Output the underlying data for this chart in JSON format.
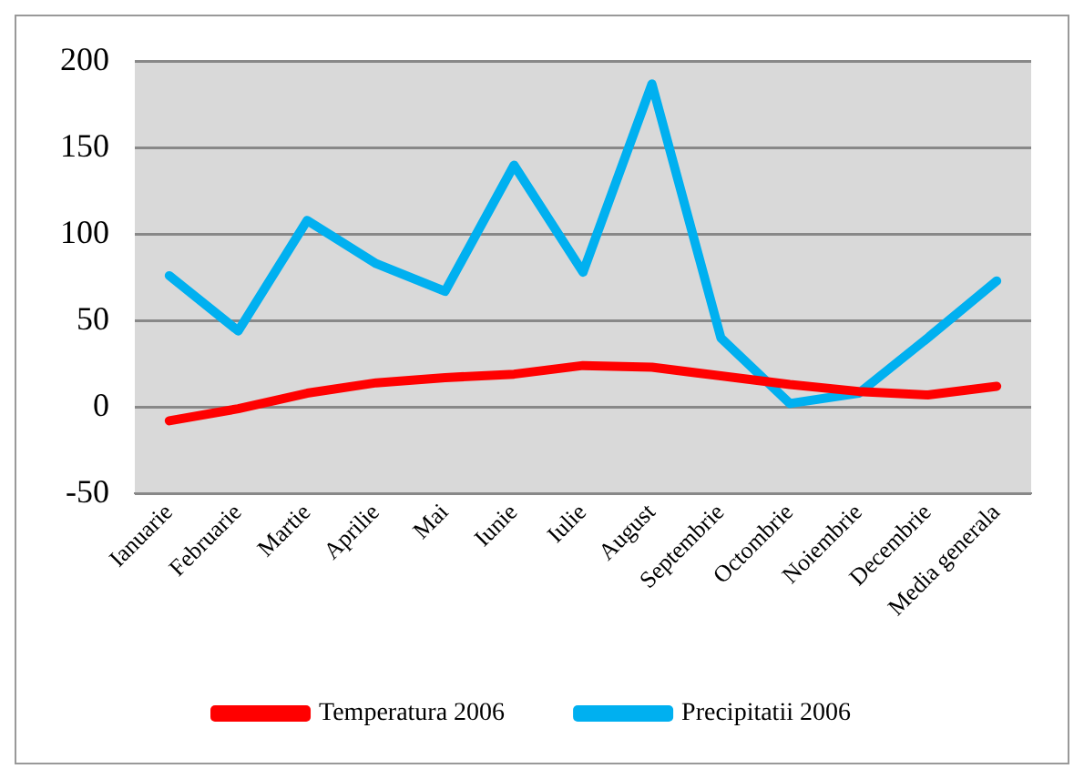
{
  "chart_data": {
    "type": "line",
    "categories": [
      "Ianuarie",
      "Februarie",
      "Martie",
      "Aprilie",
      "Mai",
      "Iunie",
      "Iulie",
      "August",
      "Septembrie",
      "Octombrie",
      "Noiembrie",
      "Decembrie",
      "Media generala"
    ],
    "series": [
      {
        "name": "Temperatura 2006",
        "color": "#ff0000",
        "values": [
          -8,
          -1,
          8,
          14,
          17,
          19,
          24,
          23,
          18,
          13,
          9,
          7,
          12
        ]
      },
      {
        "name": "Precipitatii 2006",
        "color": "#00b0f0",
        "values": [
          76,
          44,
          108,
          83,
          67,
          140,
          78,
          187,
          40,
          2,
          8,
          40,
          73
        ]
      }
    ],
    "ylim": [
      -50,
      200
    ],
    "yticks": [
      -50,
      0,
      50,
      100,
      150,
      200
    ],
    "grid": "y",
    "legend": "bottom",
    "marker": "none",
    "line_style": "solid"
  }
}
